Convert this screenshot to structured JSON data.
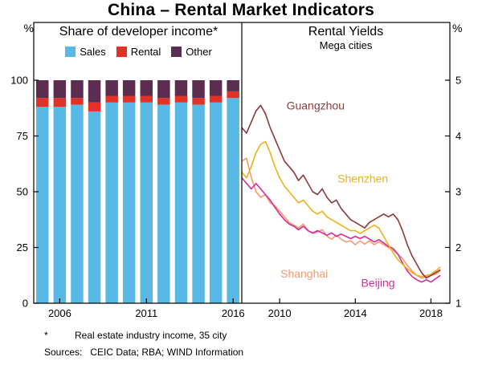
{
  "title": "China – Rental Market Indicators",
  "left_panel": {
    "title": "Share of developer income*",
    "unit": "%"
  },
  "right_panel": {
    "title": "Rental Yields",
    "subtitle": "Mega cities",
    "unit": "%"
  },
  "footnote": {
    "marker": "*",
    "text": "Real estate industry income, 35 city"
  },
  "sources": {
    "label": "Sources:",
    "text": "CEIC Data; RBA; WIND Information"
  },
  "chart_data": {
    "type": [
      "bar",
      "line"
    ],
    "bars": {
      "type": "stacked-bar",
      "title": "Share of developer income*",
      "categories": [
        2005,
        2006,
        2007,
        2008,
        2009,
        2010,
        2011,
        2012,
        2013,
        2014,
        2015,
        2016
      ],
      "series": [
        {
          "name": "Sales",
          "color": "#58B9E6",
          "values": [
            88,
            88,
            89,
            86,
            90,
            90,
            90,
            89,
            90,
            89,
            90,
            92
          ]
        },
        {
          "name": "Rental",
          "color": "#E23227",
          "values": [
            4,
            4,
            3,
            4,
            3,
            3,
            3,
            3,
            3,
            3,
            3,
            3
          ]
        },
        {
          "name": "Other",
          "color": "#5C2D51",
          "values": [
            8,
            8,
            8,
            10,
            7,
            7,
            7,
            8,
            7,
            8,
            7,
            5
          ]
        }
      ],
      "ylim": [
        0,
        100
      ],
      "yticks": [
        0,
        25,
        50,
        75,
        100
      ],
      "xticks": [
        2006,
        2011,
        2016
      ],
      "grid": false,
      "legend_position": "top"
    },
    "lines": {
      "type": "line",
      "title": "Rental Yields",
      "subtitle": "Mega cities",
      "xlim": [
        2008,
        2019
      ],
      "ylim": [
        1,
        5
      ],
      "yticks": [
        1,
        2,
        3,
        4,
        5
      ],
      "xticks": [
        2010,
        2014,
        2018
      ],
      "grid": false,
      "x_start": 2008.0,
      "x_step": 0.25,
      "series": [
        {
          "name": "Shanghai",
          "color": "#F89A6C",
          "label": {
            "x": 2011.3,
            "y": 1.53
          },
          "y": [
            3.55,
            3.6,
            3.25,
            3.0,
            2.9,
            2.95,
            2.8,
            2.75,
            2.65,
            2.55,
            2.45,
            2.4,
            2.35,
            2.42,
            2.3,
            2.25,
            2.28,
            2.32,
            2.2,
            2.15,
            2.22,
            2.15,
            2.1,
            2.12,
            2.05,
            2.12,
            2.06,
            2.12,
            2.05,
            2.1,
            2.05,
            2.0,
            1.95,
            1.88,
            1.8,
            1.68,
            1.58,
            1.5,
            1.45,
            1.48,
            1.5,
            1.52,
            1.58
          ]
        },
        {
          "name": "Beijing",
          "color": "#D22BA2",
          "label": {
            "x": 2015.2,
            "y": 1.37
          },
          "y": [
            3.25,
            3.15,
            3.05,
            3.15,
            3.05,
            2.95,
            2.85,
            2.72,
            2.6,
            2.5,
            2.42,
            2.38,
            2.32,
            2.38,
            2.3,
            2.26,
            2.3,
            2.26,
            2.22,
            2.26,
            2.2,
            2.24,
            2.2,
            2.16,
            2.2,
            2.16,
            2.2,
            2.15,
            2.1,
            2.14,
            2.08,
            2.02,
            1.98,
            1.88,
            1.72,
            1.58,
            1.48,
            1.42,
            1.38,
            1.42,
            1.38,
            1.44,
            1.5
          ]
        },
        {
          "name": "Shenzhen",
          "color": "#EFB118",
          "label": {
            "x": 2014.4,
            "y": 3.24
          },
          "y": [
            3.35,
            3.25,
            3.45,
            3.7,
            3.85,
            3.9,
            3.7,
            3.45,
            3.25,
            3.1,
            3.0,
            2.9,
            2.8,
            2.85,
            2.75,
            2.65,
            2.6,
            2.65,
            2.55,
            2.5,
            2.45,
            2.4,
            2.35,
            2.3,
            2.3,
            2.25,
            2.3,
            2.35,
            2.4,
            2.35,
            2.2,
            2.05,
            1.9,
            1.78,
            1.7,
            1.62,
            1.55,
            1.5,
            1.48,
            1.5,
            1.52,
            1.58,
            1.65
          ]
        },
        {
          "name": "Guangzhou",
          "color": "#8E3A3B",
          "label": {
            "x": 2011.9,
            "y": 4.55
          },
          "y": [
            4.15,
            4.05,
            4.25,
            4.45,
            4.55,
            4.4,
            4.15,
            3.95,
            3.75,
            3.55,
            3.45,
            3.35,
            3.2,
            3.3,
            3.15,
            3.0,
            2.95,
            3.05,
            2.9,
            2.8,
            2.85,
            2.7,
            2.6,
            2.5,
            2.45,
            2.4,
            2.35,
            2.45,
            2.5,
            2.55,
            2.6,
            2.55,
            2.6,
            2.5,
            2.3,
            2.05,
            1.85,
            1.7,
            1.55,
            1.45,
            1.5,
            1.55,
            1.6
          ]
        }
      ]
    }
  }
}
